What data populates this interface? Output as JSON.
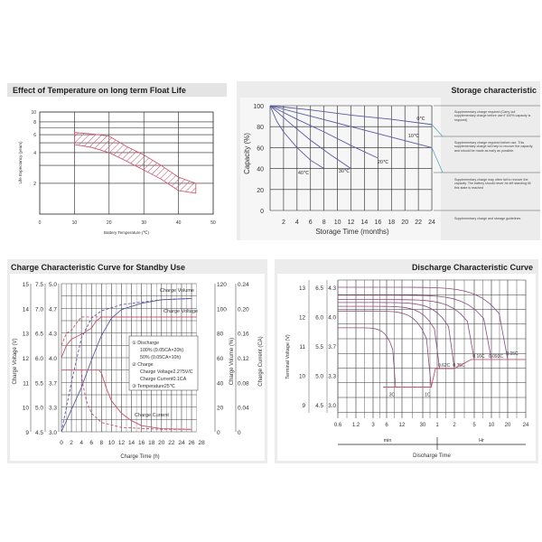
{
  "colors": {
    "grid": "#222222",
    "red": "#c8506a",
    "blue": "#5a5aa0",
    "panel": "#eeeeee",
    "teal": "#4aa0b0"
  },
  "chart_data": [
    {
      "type": "area",
      "title": "Effect of Temperature on long term Float Life",
      "xlabel": "Battery Temperature (℃)",
      "ylabel": "Life Expectancy (years)",
      "xlim": [
        0,
        50
      ],
      "ylim": [
        1,
        10
      ],
      "yscale": "log",
      "grid": true,
      "xticks": [
        "0",
        "10",
        "20",
        "30",
        "40",
        "50"
      ],
      "yticks": [
        "10",
        "8",
        "6",
        "4",
        "2"
      ],
      "band": {
        "x": [
          10,
          15,
          20,
          25,
          30,
          35,
          40,
          45
        ],
        "upper": [
          6.3,
          6.1,
          5.8,
          4.6,
          3.8,
          3.0,
          2.3,
          2.0
        ],
        "lower": [
          4.8,
          4.5,
          4.0,
          3.3,
          2.7,
          2.2,
          1.7,
          1.6
        ]
      }
    },
    {
      "type": "line",
      "title": "Storage characteristic",
      "xlabel": "Storage Time (months)",
      "ylabel": "Capacity  (%)",
      "xlim": [
        0,
        24
      ],
      "ylim": [
        0,
        100
      ],
      "grid": true,
      "xticks": [
        "2",
        "4",
        "6",
        "8",
        "10",
        "12",
        "14",
        "16",
        "18",
        "20",
        "22",
        "24"
      ],
      "yticks": [
        "100",
        "80",
        "60",
        "40",
        "20",
        "0"
      ],
      "series": [
        {
          "name": "0℃",
          "x": [
            0,
            6,
            12,
            18,
            24
          ],
          "y": [
            100,
            96,
            91,
            87,
            82
          ]
        },
        {
          "name": "10℃",
          "x": [
            0,
            6,
            12,
            18,
            24
          ],
          "y": [
            100,
            90,
            80,
            70,
            60
          ]
        },
        {
          "name": "20℃",
          "x": [
            0,
            4,
            8,
            12,
            16
          ],
          "y": [
            100,
            87,
            75,
            62,
            50
          ]
        },
        {
          "name": "30℃",
          "x": [
            0,
            3,
            6,
            9,
            12
          ],
          "y": [
            100,
            83,
            67,
            53,
            40
          ]
        },
        {
          "name": "40℃",
          "x": [
            0,
            1,
            2,
            4,
            6,
            8
          ],
          "y": [
            100,
            85,
            75,
            60,
            48,
            40
          ]
        }
      ],
      "notes": [
        "Supplementary charge required (Carry out supplementary charge before use if 100% capacity is required)",
        "Supplementary charge required before use. This supplementary charge will help to recover the capacity and should be made as early as possible.",
        "Supplementary charge may often fail to recover the capacity. The battery should never be left standing till this state is reached",
        "Supplementary charge and storage guidelines"
      ]
    },
    {
      "type": "line",
      "title": "Charge Characteristic Curve for Standby Use",
      "xlabel": "Charge Time (h)",
      "ylabel_left": "Charge Voltage (V)",
      "ylabel_right1": "Charge Volume (%)",
      "ylabel_right2": "Charge Current (CA)",
      "xlim": [
        0,
        28
      ],
      "grid": true,
      "xticks": [
        "0",
        "2",
        "4",
        "6",
        "8",
        "10",
        "12",
        "14",
        "16",
        "18",
        "20",
        "22",
        "24",
        "26",
        "28"
      ],
      "yticks_left1": [
        "15",
        "14",
        "13",
        "12",
        "11",
        "10",
        "9"
      ],
      "yticks_left2": [
        "7.5",
        "7.0",
        "6.5",
        "6.0",
        "5.5",
        "5.0",
        "4.5"
      ],
      "yticks_left3": [
        "5.0",
        "4.7",
        "4.3",
        "4.0",
        "3.7",
        "3.3",
        "3.0"
      ],
      "yticks_right1": [
        "120",
        "100",
        "80",
        "60",
        "40",
        "20",
        "0"
      ],
      "yticks_right2": [
        "0.24",
        "0.20",
        "0.16",
        "0.12",
        "0.08",
        "0.04",
        "0"
      ],
      "series": [
        {
          "name": "Charge Voltage",
          "axis": "V",
          "style": "solid",
          "x": [
            0,
            1,
            2,
            4,
            6,
            7,
            8,
            27
          ],
          "y": [
            12.0,
            12.5,
            12.75,
            12.95,
            13.2,
            13.5,
            13.65,
            13.65
          ]
        },
        {
          "axis": "V",
          "style": "dashed",
          "x": [
            0,
            1,
            2,
            3,
            4,
            27
          ],
          "y": [
            12.5,
            13.0,
            13.1,
            13.4,
            13.65,
            13.65
          ]
        },
        {
          "name": "Charge Volume",
          "axis": "%",
          "style": "solid",
          "x": [
            0,
            2,
            4,
            6,
            8,
            10,
            12,
            16,
            20,
            26
          ],
          "y": [
            0,
            18,
            36,
            58,
            78,
            92,
            99,
            104,
            107,
            108
          ]
        },
        {
          "axis": "%",
          "style": "dashed",
          "x": [
            0,
            2,
            4,
            6,
            8,
            12,
            20,
            26
          ],
          "y": [
            0,
            40,
            76,
            92,
            98,
            103,
            107,
            108
          ]
        },
        {
          "name": "Charge Current",
          "axis": "CA",
          "style": "solid",
          "x": [
            0,
            7.5,
            8,
            9,
            10,
            12,
            14,
            16,
            20,
            26
          ],
          "y": [
            0.1,
            0.1,
            0.095,
            0.07,
            0.05,
            0.03,
            0.018,
            0.01,
            0.005,
            0.004
          ]
        },
        {
          "axis": "CA",
          "style": "dashed",
          "x": [
            4,
            4.2,
            5,
            6,
            8,
            12,
            20,
            26
          ],
          "y": [
            0.1,
            0.08,
            0.05,
            0.03,
            0.015,
            0.007,
            0.004,
            0.004
          ]
        }
      ],
      "legend": [
        "① Discharge",
        "100% (0.05CA×20h)",
        "50% (0.05CA×10h)",
        "② Charge",
        "Charge Voltage2.275V/C",
        "Charge Current0.1CA",
        "③ Temperature25℃"
      ]
    },
    {
      "type": "line",
      "title": "Discharge Characteristic Curve",
      "xlabel": "Discharge Time",
      "ylabel": "Terminal Voltage (V)",
      "xscale": "log",
      "grid": true,
      "xticks": [
        "0.6",
        "1.2",
        "3",
        "6",
        "12",
        "30",
        "1",
        "2",
        "5",
        "10",
        "20",
        "24"
      ],
      "xunits": [
        "min",
        "Hr"
      ],
      "yticks1": [
        "13",
        "12",
        "11",
        "10",
        "9"
      ],
      "yticks2": [
        "6.5",
        "6.0",
        "5.5",
        "5.0",
        "4.5"
      ],
      "yticks3": [
        "4.3",
        "4.0",
        "3.7",
        "3.3",
        "3.0"
      ],
      "series": [
        {
          "name": "3C",
          "start_v": 11.62,
          "end_min": 9,
          "end_v": 9.6
        },
        {
          "name": "1C",
          "start_v": 12.19,
          "end_min": 45,
          "end_v": 9.6
        },
        {
          "name": "0.62C",
          "start_v": 12.35,
          "end_min": 66,
          "end_v": 10.23
        },
        {
          "name": "0.35C",
          "start_v": 12.48,
          "end_min": 120,
          "end_v": 10.23
        },
        {
          "name": "0.16C",
          "start_v": 12.58,
          "end_min": 300,
          "end_v": 10.54
        },
        {
          "name": "0.093C",
          "start_v": 12.73,
          "end_min": 600,
          "end_v": 10.54
        },
        {
          "name": "0.05C",
          "start_v": 13.0,
          "end_min": 1200,
          "end_v": 10.54
        }
      ]
    }
  ]
}
